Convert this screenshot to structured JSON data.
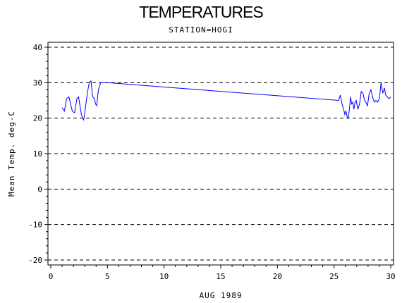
{
  "chart_data": {
    "type": "line",
    "title": "TEMPERATURES",
    "subtitle": "STATION=HOGI",
    "xlabel": "AUG 1989",
    "ylabel": "Mean Temp. deg-C",
    "xlim": [
      0,
      30
    ],
    "ylim": [
      -20,
      40
    ],
    "x_ticks": [
      0,
      5,
      10,
      15,
      20,
      25,
      30
    ],
    "y_ticks": [
      -20,
      -10,
      0,
      10,
      20,
      30,
      40
    ],
    "grid": "horizontal dashed",
    "series": [
      {
        "color": "#0000ff",
        "x": [
          1.0,
          1.2,
          1.4,
          1.6,
          1.75,
          1.9,
          2.1,
          2.3,
          2.45,
          2.55,
          2.7,
          2.8,
          2.9,
          3.0,
          3.1,
          3.25,
          3.4,
          3.55,
          3.7,
          3.85,
          3.95,
          4.05,
          4.2,
          4.3,
          4.4,
          4.5,
          4.65,
          4.8,
          5.0,
          25.4,
          25.55,
          25.7,
          25.85,
          25.95,
          26.05,
          26.15,
          26.25,
          26.35,
          26.45,
          26.55,
          26.65,
          26.75,
          26.85,
          26.95,
          27.1,
          27.25,
          27.4,
          27.55,
          27.7,
          27.8,
          27.95,
          28.1,
          28.25,
          28.4,
          28.55,
          28.7,
          28.85,
          29.0,
          29.15,
          29.3,
          29.45,
          29.55,
          29.7,
          29.85,
          30.0
        ],
        "values": [
          23.0,
          22.0,
          25.5,
          26.0,
          24.0,
          22.0,
          21.5,
          25.5,
          26.0,
          24.0,
          21.0,
          20.0,
          19.5,
          21.5,
          24.0,
          27.5,
          30.0,
          30.5,
          26.0,
          25.5,
          24.0,
          23.5,
          28.0,
          29.0,
          30.0,
          30.0,
          30.0,
          30.0,
          30.0,
          25.0,
          26.5,
          24.0,
          22.5,
          21.0,
          22.0,
          20.5,
          20.0,
          22.5,
          26.0,
          24.0,
          24.5,
          22.5,
          24.5,
          25.0,
          22.5,
          24.0,
          27.5,
          27.0,
          25.0,
          24.5,
          23.5,
          27.0,
          28.0,
          26.0,
          24.5,
          25.0,
          24.5,
          25.5,
          30.0,
          27.0,
          28.5,
          26.5,
          26.0,
          25.5,
          26.0
        ]
      }
    ]
  }
}
